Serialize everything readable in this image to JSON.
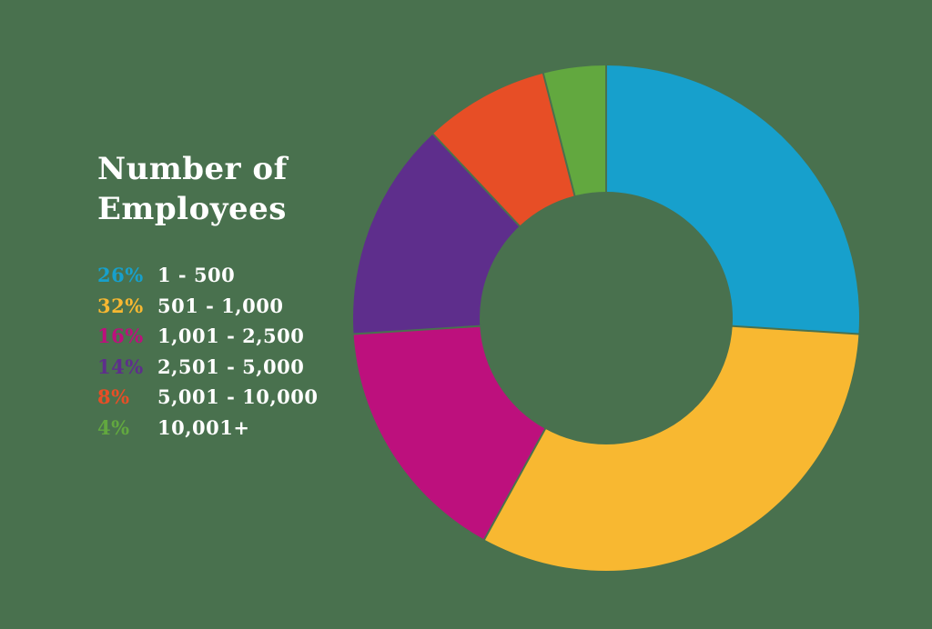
{
  "background_color": "#49714E",
  "title_lines": [
    "Number of",
    "Employees"
  ],
  "chart_data": {
    "type": "pie",
    "subtype": "donut",
    "title": "Number of Employees",
    "categories": [
      "1 - 500",
      "501 - 1,000",
      "1,001 - 2,500",
      "2,501 - 5,000",
      "5,001 - 10,000",
      "10,001+"
    ],
    "values": [
      26,
      32,
      16,
      14,
      8,
      4
    ],
    "value_labels": [
      "26%",
      "32%",
      "16%",
      "14%",
      "8%",
      "4%"
    ],
    "unit": "%",
    "colors": [
      "#17A0CC",
      "#F8B831",
      "#BD107D",
      "#5E2E8C",
      "#E74E26",
      "#62A83F"
    ],
    "start_angle_deg": 0,
    "direction": "clockwise",
    "inner_radius_ratio": 0.5,
    "slice_gap_color": "#49714E",
    "legend_position": "left",
    "text_color": "#FFFFFF"
  }
}
